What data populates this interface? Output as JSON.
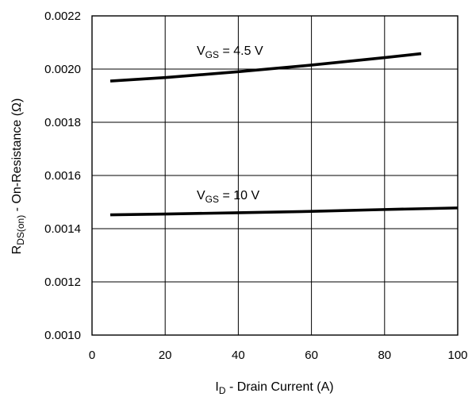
{
  "chart_data": {
    "type": "line",
    "xlabel": {
      "main": "I",
      "sub": "D",
      "rest": " - Drain Current (A)"
    },
    "ylabel": {
      "main": "R",
      "sub": "DS(on)",
      "rest": " - On-Resistance (Ω)"
    },
    "xlim": [
      0,
      100
    ],
    "ylim": [
      0.001,
      0.0022
    ],
    "xticks": [
      0,
      20,
      40,
      60,
      80,
      100
    ],
    "xtick_labels": [
      "0",
      "20",
      "40",
      "60",
      "80",
      "100"
    ],
    "yticks": [
      0.001,
      0.0012,
      0.0014,
      0.0016,
      0.0018,
      0.002,
      0.0022
    ],
    "ytick_labels": [
      "0.0010",
      "0.0012",
      "0.0014",
      "0.0016",
      "0.0018",
      "0.0020",
      "0.0022"
    ],
    "grid": true,
    "series": [
      {
        "label": {
          "main": "V",
          "sub": "GS",
          "rest": " = 4.5 V"
        },
        "x": [
          5,
          20,
          40,
          60,
          80,
          90
        ],
        "y": [
          0.001955,
          0.001968,
          0.00199,
          0.002015,
          0.002043,
          0.002058
        ]
      },
      {
        "label": {
          "main": "V",
          "sub": "GS",
          "rest": " = 10 V"
        },
        "x": [
          5,
          20,
          40,
          60,
          80,
          100
        ],
        "y": [
          0.001452,
          0.001455,
          0.00146,
          0.001465,
          0.001472,
          0.001478
        ]
      }
    ]
  }
}
